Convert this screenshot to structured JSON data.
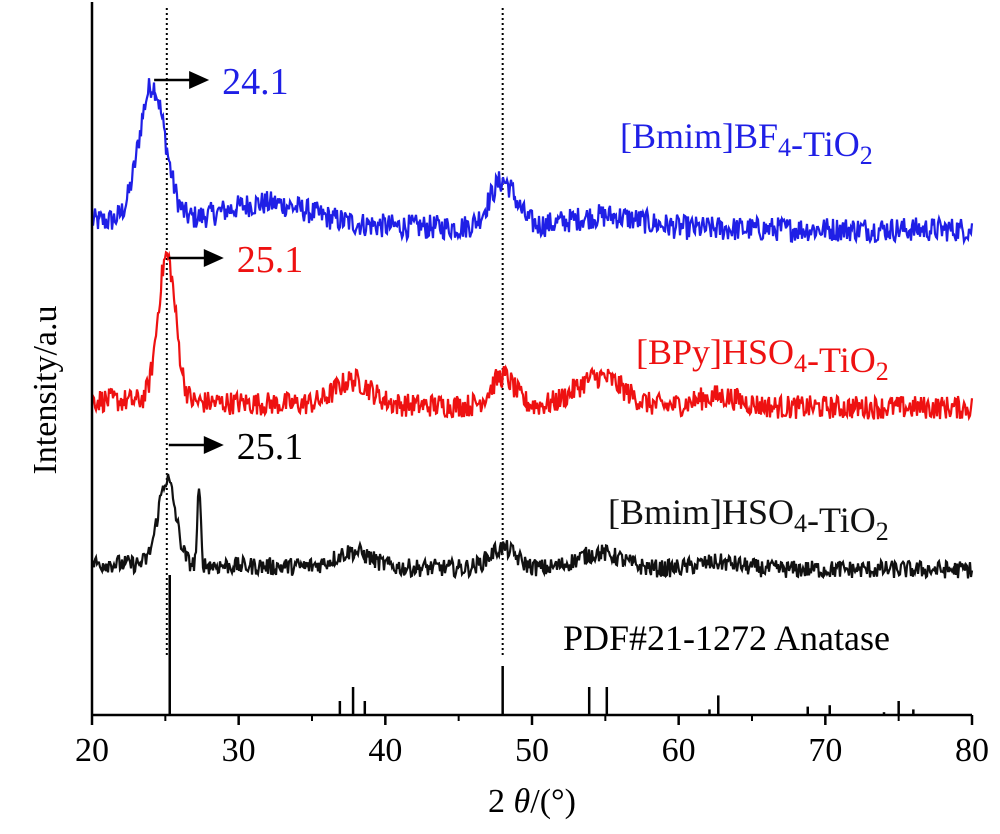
{
  "chart_data": {
    "type": "line",
    "xlabel": "2θ/(°)",
    "ylabel": "Intensity/a.u",
    "xlim": [
      20,
      80
    ],
    "xticks": [
      "20",
      "30",
      "40",
      "50",
      "60",
      "70",
      "80"
    ],
    "grid": false,
    "reference_lines_x": [
      25.1,
      48.0
    ],
    "series": [
      {
        "name": "[Bmim]BF4-TiO2",
        "color": "#1f1fe6",
        "baseline": 0.0,
        "peaks": [
          [
            24.1,
            2.2,
            0.9
          ],
          [
            32.0,
            0.35,
            3.0
          ],
          [
            48.0,
            0.75,
            0.9
          ],
          [
            55.0,
            0.2,
            2.5
          ]
        ],
        "noise": 0.2,
        "peak_label": "24.1",
        "peak_x": 24.1
      },
      {
        "name": "[BPy]HSO4-TiO2",
        "color": "#ee1111",
        "baseline": 0.0,
        "peaks": [
          [
            25.1,
            2.7,
            0.6
          ],
          [
            37.8,
            0.45,
            1.2
          ],
          [
            48.0,
            0.55,
            0.8
          ],
          [
            54.6,
            0.55,
            1.6
          ],
          [
            62.7,
            0.2,
            1.5
          ]
        ],
        "noise": 0.22,
        "peak_label": "25.1",
        "peak_x": 25.1
      },
      {
        "name": "[Bmim]HSO4-TiO2",
        "color": "#111111",
        "baseline": 0.0,
        "peaks": [
          [
            25.1,
            1.9,
            0.6
          ],
          [
            27.3,
            1.6,
            0.12
          ],
          [
            37.8,
            0.35,
            1.2
          ],
          [
            48.0,
            0.45,
            0.9
          ],
          [
            54.6,
            0.35,
            1.5
          ],
          [
            62.7,
            0.15,
            1.5
          ]
        ],
        "noise": 0.2,
        "peak_label": "25.1",
        "peak_x": 25.1
      }
    ],
    "reference": {
      "name": "PDF#21-1272 Anatase",
      "sticks": [
        [
          25.3,
          100
        ],
        [
          36.9,
          10
        ],
        [
          37.8,
          20
        ],
        [
          38.6,
          10
        ],
        [
          48.0,
          35
        ],
        [
          53.9,
          20
        ],
        [
          55.1,
          20
        ],
        [
          62.1,
          4
        ],
        [
          62.7,
          14
        ],
        [
          68.8,
          6
        ],
        [
          70.3,
          7
        ],
        [
          74.0,
          2
        ],
        [
          75.0,
          10
        ],
        [
          76.0,
          4
        ]
      ]
    }
  }
}
